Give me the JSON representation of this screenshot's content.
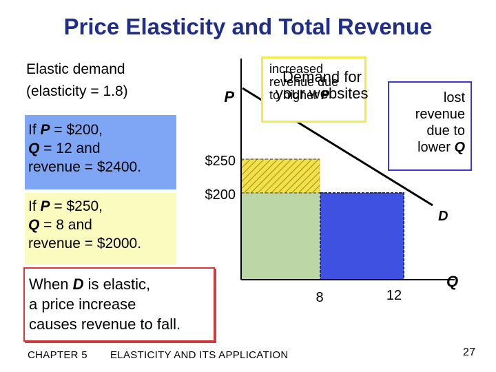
{
  "slide": {
    "title": "Price Elasticity and Total Revenue",
    "footer_chapter": "CHAPTER 5",
    "footer_topic": "ELASTICITY AND ITS APPLICATION",
    "page_number": "27"
  },
  "left": {
    "elastic_line1": "Elastic demand",
    "elastic_line2": "(elasticity = 1.8)",
    "p200": {
      "prefix1": "If ",
      "var1": "P",
      "mid1": " = $200,",
      "var2": "Q",
      "mid2": " = 12 and",
      "line3": "revenue = $2400."
    },
    "p250": {
      "prefix1": "If ",
      "var1": "P",
      "mid1": " = $250,",
      "var2": "Q",
      "mid2": " = 8 and",
      "line3": "revenue = $2000."
    },
    "conclusion": {
      "pre": "When ",
      "var": "D",
      "post": " is elastic,",
      "line2": "a price increase",
      "line3": "causes revenue to fall."
    }
  },
  "graph": {
    "y_axis_label": "P",
    "x_axis_label": "Q",
    "y_tick_250": "$250",
    "y_tick_200": "$200",
    "x_tick_8": "8",
    "x_tick_12": "12",
    "demand_label": "D",
    "annotation_increase": {
      "line1": "increased",
      "line2": "revenue due",
      "line3_pre": "to higher ",
      "line3_var": "P"
    },
    "annotation_lost": {
      "line1": "lost",
      "line2": "revenue",
      "line3": "due to",
      "line4_pre": "lower ",
      "line4_var": "Q"
    },
    "overlay_title": {
      "line1": "Demand for",
      "line2": "your websites"
    },
    "colors": {
      "common_revenue": "#bcd6a6",
      "gain_hatch": "#f2e14a",
      "loss_fill": "#3f51e0",
      "axis": "#000000",
      "demand_line": "#000000"
    }
  }
}
